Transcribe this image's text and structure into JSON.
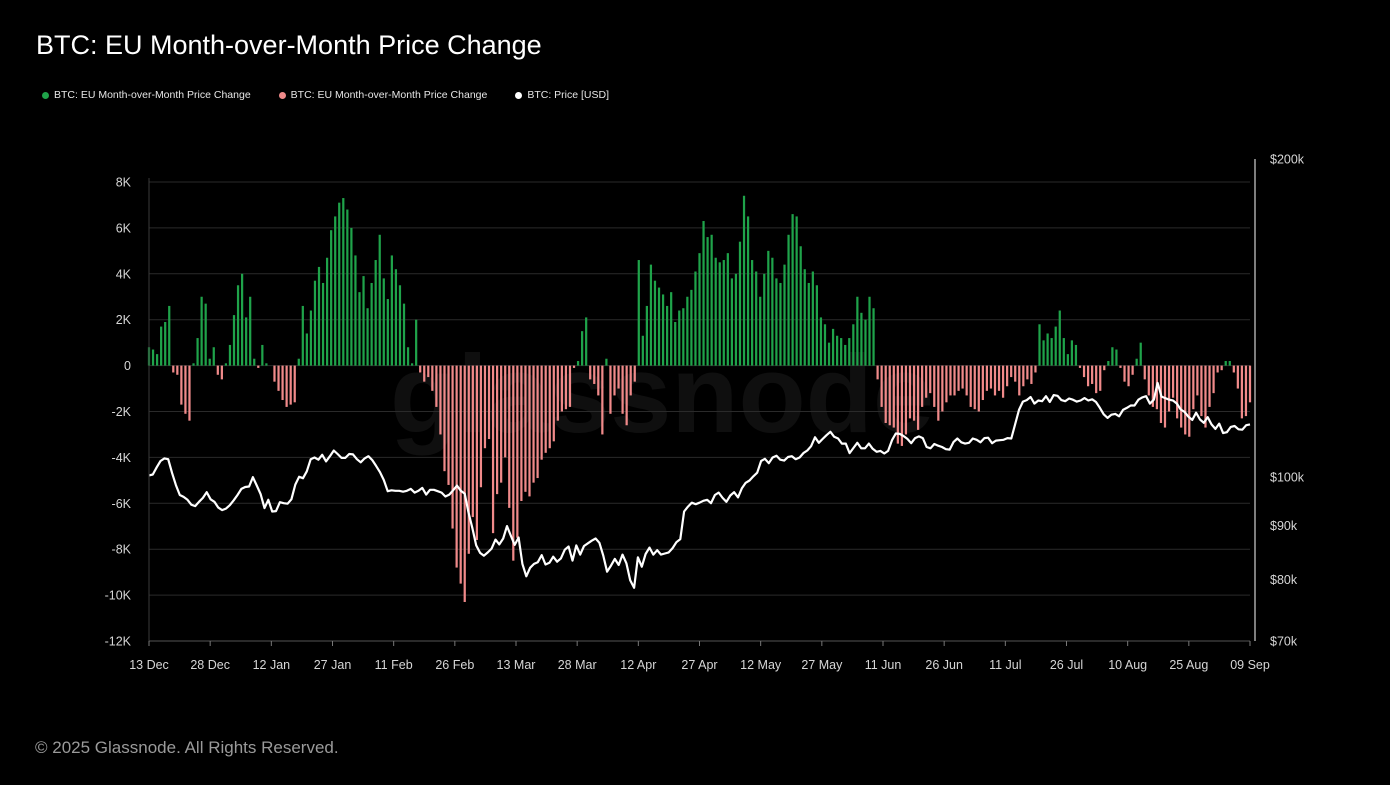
{
  "title": "BTC: EU Month-over-Month Price Change",
  "legend": [
    {
      "label": "BTC: EU Month-over-Month Price Change",
      "color": "#1fa34a"
    },
    {
      "label": "BTC: EU Month-over-Month Price Change",
      "color": "#f08a8a"
    },
    {
      "label": "BTC: Price [USD]",
      "color": "#ffffff"
    }
  ],
  "footer": "© 2025 Glassnode. All Rights Reserved.",
  "watermark": "glassnode",
  "colors": {
    "positive": "#1fa34a",
    "negative": "#f08a8a",
    "price": "#ffffff",
    "grid": "#2a2a2a"
  },
  "chart_data": {
    "type": "bar",
    "title": "BTC: EU Month-over-Month Price Change",
    "x_ticks": [
      "13 Dec",
      "28 Dec",
      "12 Jan",
      "27 Jan",
      "11 Feb",
      "26 Feb",
      "13 Mar",
      "28 Mar",
      "12 Apr",
      "27 Apr",
      "12 May",
      "27 May",
      "11 Jun",
      "26 Jun",
      "11 Jul",
      "26 Jul",
      "10 Aug",
      "25 Aug",
      "09 Sep"
    ],
    "y_left_ticks": [
      "8K",
      "6K",
      "4K",
      "2K",
      "0",
      "-2K",
      "-4K",
      "-6K",
      "-8K",
      "-10K",
      "-12K"
    ],
    "y_left_range": [
      -12000,
      8000
    ],
    "y_right_ticks": [
      "$200k",
      "$100k",
      "$90k",
      "$80k",
      "$70k"
    ],
    "y_right_tick_values": [
      200000,
      100000,
      90000,
      80000,
      70000
    ],
    "y_right_scale": "log",
    "y_right_range": [
      70000,
      200000
    ],
    "series": [
      {
        "name": "BTC: EU Month-over-Month Price Change",
        "type": "bar",
        "unit": "USD",
        "values": [
          800,
          700,
          500,
          1700,
          1900,
          2600,
          -300,
          -400,
          -1700,
          -2100,
          -2400,
          100,
          1200,
          3000,
          2700,
          300,
          800,
          -400,
          -600,
          100,
          900,
          2200,
          3500,
          4000,
          2100,
          3000,
          300,
          -100,
          900,
          100,
          0,
          -700,
          -1100,
          -1500,
          -1800,
          -1700,
          -1600,
          300,
          2600,
          1400,
          2400,
          3700,
          4300,
          3600,
          4700,
          5900,
          6500,
          7100,
          7300,
          6800,
          6000,
          4800,
          3200,
          3900,
          2500,
          3600,
          4600,
          5700,
          3800,
          2900,
          4800,
          4200,
          3500,
          2700,
          800,
          100,
          2000,
          -300,
          -700,
          -500,
          -1100,
          -1800,
          -3000,
          -4600,
          -5200,
          -7100,
          -8800,
          -9500,
          -10300,
          -8200,
          -6600,
          -7600,
          -5300,
          -3600,
          -3200,
          -7300,
          -5600,
          -5100,
          -4000,
          -6200,
          -8500,
          -7500,
          -5900,
          -5500,
          -5700,
          -5100,
          -4900,
          -4100,
          -3800,
          -3600,
          -3300,
          -2400,
          -2000,
          -1900,
          -1800,
          -100,
          200,
          1500,
          2100,
          -600,
          -800,
          -1300,
          -3000,
          300,
          -2100,
          -1300,
          -1000,
          -2100,
          -2600,
          -1300,
          -700,
          4600,
          1300,
          2600,
          4400,
          3700,
          3400,
          3100,
          2600,
          3200,
          1900,
          2400,
          2500,
          3000,
          3300,
          4100,
          4900,
          6300,
          5600,
          5700,
          4700,
          4500,
          4600,
          4900,
          3800,
          4000,
          5400,
          7400,
          6500,
          4600,
          4100,
          3000,
          4000,
          5000,
          4700,
          3800,
          3600,
          4400,
          5700,
          6600,
          6500,
          5200,
          4200,
          3600,
          4100,
          3500,
          2100,
          1800,
          1000,
          1600,
          1300,
          1200,
          900,
          1200,
          1800,
          3000,
          2300,
          2000,
          3000,
          2500,
          -600,
          -1800,
          -2500,
          -2600,
          -2700,
          -3400,
          -3500,
          -3000,
          -2300,
          -2400,
          -2800,
          -1800,
          -1400,
          -1200,
          -1800,
          -2400,
          -2000,
          -1600,
          -1300,
          -1300,
          -1100,
          -1000,
          -1300,
          -1800,
          -1900,
          -2000,
          -1500,
          -1100,
          -1000,
          -1300,
          -1100,
          -1400,
          -900,
          -500,
          -700,
          -1300,
          -900,
          -600,
          -800,
          -300,
          1800,
          1100,
          1400,
          1200,
          1700,
          2400,
          1200,
          500,
          1100,
          900,
          -100,
          -500,
          -900,
          -800,
          -1200,
          -1100,
          -200,
          200,
          800,
          700,
          -100,
          -700,
          -900,
          -400,
          300,
          1000,
          -600,
          -1300,
          -1800,
          -1900,
          -2500,
          -2700,
          -2000,
          -1400,
          -2300,
          -2700,
          -3000,
          -3100,
          -1900,
          -1300,
          -2200,
          -2700,
          -1800,
          -1200,
          -300,
          -200,
          200,
          200,
          -300,
          -1000,
          -2300,
          -2200,
          -1600
        ]
      },
      {
        "name": "BTC: Price [USD]",
        "type": "line",
        "unit": "USD",
        "values": [
          100400,
          100600,
          102200,
          103600,
          104200,
          104000,
          100900,
          98300,
          96200,
          95800,
          95200,
          94200,
          93900,
          94800,
          95600,
          96800,
          95300,
          94800,
          93600,
          93100,
          93400,
          94100,
          95100,
          96200,
          97500,
          97900,
          98000,
          100000,
          98200,
          96400,
          93500,
          95200,
          92800,
          92900,
          94700,
          94500,
          94400,
          95300,
          98400,
          100100,
          99800,
          101300,
          104000,
          104400,
          103900,
          105000,
          103500,
          104700,
          106000,
          105200,
          104300,
          104300,
          105200,
          105100,
          104000,
          103300,
          104200,
          104700,
          103800,
          102500,
          101100,
          99400,
          97000,
          97200,
          97100,
          97100,
          96900,
          97100,
          97500,
          96700,
          97100,
          97700,
          96300,
          97300,
          97300,
          97000,
          96700,
          95900,
          96300,
          97200,
          98200,
          97100,
          96500,
          92600,
          89500,
          86200,
          84800,
          84300,
          84900,
          85600,
          87300,
          86400,
          87500,
          89900,
          88000,
          86300,
          87700,
          82800,
          80600,
          82100,
          82800,
          83100,
          84400,
          82700,
          83000,
          84100,
          83200,
          83800,
          85400,
          86000,
          83400,
          86200,
          84500,
          86100,
          86600,
          87100,
          87500,
          86700,
          84300,
          81400,
          82500,
          83700,
          82600,
          84500,
          82900,
          79900,
          78600,
          84000,
          82300,
          84600,
          85800,
          84500,
          85300,
          84500,
          84700,
          84900,
          85700,
          86800,
          87400,
          92800,
          93800,
          94600,
          94300,
          94600,
          95000,
          95200,
          94500,
          96200,
          96700,
          95600,
          94800,
          96100,
          96800,
          95700,
          97600,
          98800,
          99300,
          100200,
          101000,
          103600,
          104100,
          103100,
          104400,
          104800,
          103900,
          103700,
          104500,
          104700,
          104000,
          104400,
          105400,
          106000,
          107000,
          109100,
          107800,
          108700,
          109600,
          110400,
          109200,
          108800,
          107600,
          107600,
          105400,
          106600,
          107800,
          106500,
          106500,
          107600,
          106400,
          105700,
          105900,
          105300,
          105900,
          108400,
          110000,
          109900,
          109400,
          108700,
          107700,
          108900,
          109300,
          108900,
          106800,
          106500,
          107500,
          107100,
          106800,
          106300,
          106200,
          108000,
          108800,
          107900,
          107600,
          107800,
          108800,
          108500,
          107900,
          108900,
          109000,
          107700,
          108300,
          108400,
          108500,
          108900,
          108800,
          112300,
          115800,
          117900,
          118300,
          119100,
          117400,
          118200,
          118000,
          119300,
          117800,
          119600,
          119400,
          118300,
          118000,
          118700,
          118400,
          117900,
          118200,
          118800,
          118200,
          118500,
          117800,
          116300,
          114700,
          113800,
          114600,
          114800,
          114200,
          115800,
          116300,
          116900,
          116900,
          118400,
          119000,
          119300,
          117400,
          118400,
          122800,
          119200,
          118800,
          118400,
          118200,
          117400,
          115900,
          115300,
          114100,
          113300,
          115100,
          113400,
          112600,
          114000,
          112200,
          111100,
          112400,
          110100,
          110300,
          111600,
          111800,
          111000,
          110900,
          112000,
          112200
        ]
      }
    ]
  }
}
